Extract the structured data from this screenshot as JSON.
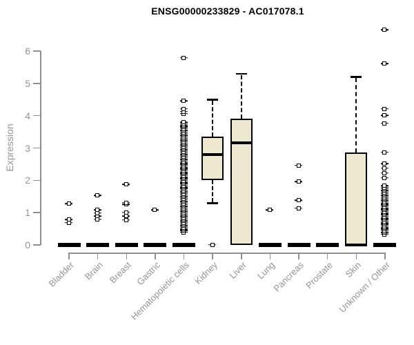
{
  "chart_data": {
    "type": "boxplot",
    "title": "ENSG00000233829 - AC017078.1",
    "ylabel": "Expression",
    "xlabel": "",
    "ylim": [
      0,
      6
    ],
    "yticks": [
      0,
      1,
      2,
      3,
      4,
      5,
      6
    ],
    "grid": false,
    "legend": null,
    "categories": [
      "Bladder",
      "Brain",
      "Breast",
      "Gastric",
      "Hematopoietic cells",
      "Kidney",
      "Liver",
      "Lung",
      "Pancreas",
      "Prostate",
      "Skin",
      "Unknown / Other"
    ],
    "boxes": [
      {
        "category": "Bladder",
        "q1": 0,
        "median": 0,
        "q3": 0,
        "whisker_low": 0,
        "whisker_high": 0,
        "outliers": [
          0.68,
          0.77,
          1.26
        ]
      },
      {
        "category": "Brain",
        "q1": 0,
        "median": 0,
        "q3": 0,
        "whisker_low": 0,
        "whisker_high": 0,
        "outliers": [
          0.78,
          0.88,
          0.98,
          1.07,
          1.52
        ]
      },
      {
        "category": "Breast",
        "q1": 0,
        "median": 0,
        "q3": 0,
        "whisker_low": 0,
        "whisker_high": 0,
        "outliers": [
          0.76,
          0.88,
          1.0,
          1.24,
          1.3,
          1.86
        ]
      },
      {
        "category": "Gastric",
        "q1": 0,
        "median": 0,
        "q3": 0,
        "whisker_low": 0,
        "whisker_high": 0,
        "outliers": [
          1.07
        ]
      },
      {
        "category": "Hematopoietic cells",
        "q1": 0,
        "median": 0,
        "q3": 0,
        "whisker_low": 0,
        "whisker_high": 0,
        "outliers": [
          0.38,
          0.43,
          0.48,
          0.53,
          0.58,
          0.63,
          0.68,
          0.73,
          0.78,
          0.83,
          0.88,
          0.93,
          0.98,
          1.03,
          1.08,
          1.13,
          1.18,
          1.23,
          1.28,
          1.33,
          1.38,
          1.43,
          1.48,
          1.53,
          1.58,
          1.63,
          1.68,
          1.73,
          1.78,
          1.83,
          1.88,
          1.93,
          1.98,
          2.03,
          2.08,
          2.13,
          2.18,
          2.23,
          2.28,
          2.33,
          2.38,
          2.43,
          2.48,
          2.53,
          2.58,
          2.63,
          2.68,
          2.73,
          2.78,
          2.83,
          2.88,
          2.93,
          2.98,
          3.03,
          3.08,
          3.13,
          3.18,
          3.23,
          3.28,
          3.33,
          3.38,
          3.43,
          3.48,
          3.53,
          3.58,
          3.63,
          3.68,
          3.73,
          3.78,
          4.05,
          4.12,
          4.2,
          4.45,
          5.78
        ]
      },
      {
        "category": "Kidney",
        "q1": 2.0,
        "median": 2.8,
        "q3": 3.35,
        "whisker_low": 1.3,
        "whisker_high": 4.5,
        "outliers": [
          0
        ]
      },
      {
        "category": "Liver",
        "q1": 0,
        "median": 3.17,
        "q3": 3.9,
        "whisker_low": 0,
        "whisker_high": 5.3,
        "outliers": []
      },
      {
        "category": "Lung",
        "q1": 0,
        "median": 0,
        "q3": 0,
        "whisker_low": 0,
        "whisker_high": 0,
        "outliers": [
          1.07
        ]
      },
      {
        "category": "Pancreas",
        "q1": 0,
        "median": 0,
        "q3": 0,
        "whisker_low": 0,
        "whisker_high": 0,
        "outliers": [
          1.13,
          1.37,
          1.95,
          2.45
        ]
      },
      {
        "category": "Prostate",
        "q1": 0,
        "median": 0,
        "q3": 0,
        "whisker_low": 0,
        "whisker_high": 0,
        "outliers": []
      },
      {
        "category": "Skin",
        "q1": 0,
        "median": 0,
        "q3": 2.87,
        "whisker_low": 0,
        "whisker_high": 5.2,
        "outliers": []
      },
      {
        "category": "Unknown / Other",
        "q1": 0,
        "median": 0,
        "q3": 0,
        "whisker_low": 0,
        "whisker_high": 0,
        "outliers": [
          0.32,
          0.37,
          0.42,
          0.47,
          0.52,
          0.57,
          0.62,
          0.67,
          0.72,
          0.77,
          0.82,
          0.87,
          0.92,
          0.97,
          1.02,
          1.07,
          1.12,
          1.17,
          1.22,
          1.27,
          1.32,
          1.37,
          1.42,
          1.47,
          1.52,
          1.57,
          1.62,
          1.67,
          1.72,
          1.77,
          1.82,
          2.07,
          2.22,
          2.37,
          2.5,
          2.86,
          3.75,
          4.0,
          4.2,
          5.6,
          6.65
        ]
      }
    ],
    "colors": {
      "box_fill": "#EEE8CF",
      "box_border": "#000000",
      "median": "#000000",
      "whisker": "#000000",
      "axis": "#8f8f8f",
      "tick_label": "#949494",
      "title": "#000000",
      "background": "#ffffff"
    }
  }
}
